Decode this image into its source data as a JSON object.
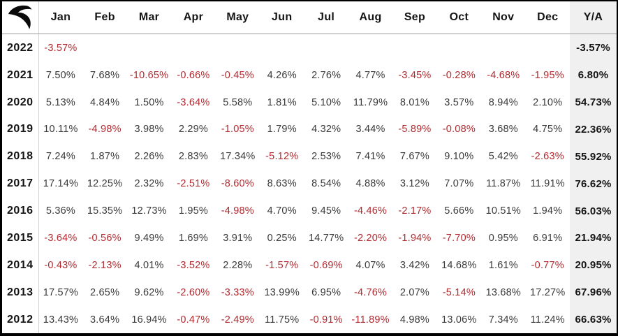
{
  "colors": {
    "negative": "#b12b31",
    "positive": "#3a3a3a",
    "heading": "#141414",
    "ya_bg": "#f0f0f0",
    "grid": "#d0d0d0",
    "header_rule": "#9a9a9a",
    "border": "#000000"
  },
  "logo": {
    "name": "brand-swoosh-logo"
  },
  "table": {
    "months": [
      "Jan",
      "Feb",
      "Mar",
      "Apr",
      "May",
      "Jun",
      "Jul",
      "Aug",
      "Sep",
      "Oct",
      "Nov",
      "Dec"
    ],
    "total_label": "Y/A",
    "rows": [
      {
        "year": "2022",
        "monthly": [
          "-3.57%",
          "",
          "",
          "",
          "",
          "",
          "",
          "",
          "",
          "",
          "",
          ""
        ],
        "total": "-3.57%"
      },
      {
        "year": "2021",
        "monthly": [
          "7.50%",
          "7.68%",
          "-10.65%",
          "-0.66%",
          "-0.45%",
          "4.26%",
          "2.76%",
          "4.77%",
          "-3.45%",
          "-0.28%",
          "-4.68%",
          "-1.95%"
        ],
        "total": "6.80%"
      },
      {
        "year": "2020",
        "monthly": [
          "5.13%",
          "4.84%",
          "1.50%",
          "-3.64%",
          "5.58%",
          "1.81%",
          "5.10%",
          "11.79%",
          "8.01%",
          "3.57%",
          "8.94%",
          "2.10%"
        ],
        "total": "54.73%"
      },
      {
        "year": "2019",
        "monthly": [
          "10.11%",
          "-4.98%",
          "3.98%",
          "2.29%",
          "-1.05%",
          "1.79%",
          "4.32%",
          "3.44%",
          "-5.89%",
          "-0.08%",
          "3.68%",
          "4.75%"
        ],
        "total": "22.36%"
      },
      {
        "year": "2018",
        "monthly": [
          "7.24%",
          "1.87%",
          "2.26%",
          "2.83%",
          "17.34%",
          "-5.12%",
          "2.53%",
          "7.41%",
          "7.67%",
          "9.10%",
          "5.42%",
          "-2.63%"
        ],
        "total": "55.92%"
      },
      {
        "year": "2017",
        "monthly": [
          "17.14%",
          "12.25%",
          "2.32%",
          "-2.51%",
          "-8.60%",
          "8.63%",
          "8.54%",
          "4.88%",
          "3.12%",
          "7.07%",
          "11.87%",
          "11.91%"
        ],
        "total": "76.62%"
      },
      {
        "year": "2016",
        "monthly": [
          "5.36%",
          "15.35%",
          "12.73%",
          "1.95%",
          "-4.98%",
          "4.70%",
          "9.45%",
          "-4.46%",
          "-2.17%",
          "5.66%",
          "10.51%",
          "1.94%"
        ],
        "total": "56.03%"
      },
      {
        "year": "2015",
        "monthly": [
          "-3.64%",
          "-0.56%",
          "9.49%",
          "1.69%",
          "3.91%",
          "0.25%",
          "14.77%",
          "-2.20%",
          "-1.94%",
          "-7.70%",
          "0.95%",
          "6.91%"
        ],
        "total": "21.94%"
      },
      {
        "year": "2014",
        "monthly": [
          "-0.43%",
          "-2.13%",
          "4.01%",
          "-3.52%",
          "2.28%",
          "-1.57%",
          "-0.69%",
          "4.07%",
          "3.42%",
          "14.68%",
          "1.61%",
          "-0.77%"
        ],
        "total": "20.95%"
      },
      {
        "year": "2013",
        "monthly": [
          "17.57%",
          "2.65%",
          "9.62%",
          "-2.60%",
          "-3.33%",
          "13.99%",
          "6.95%",
          "-4.76%",
          "2.07%",
          "-5.14%",
          "13.68%",
          "17.27%"
        ],
        "total": "67.96%"
      },
      {
        "year": "2012",
        "monthly": [
          "13.43%",
          "3.64%",
          "16.94%",
          "-0.47%",
          "-2.49%",
          "11.75%",
          "-0.91%",
          "-11.89%",
          "4.98%",
          "13.06%",
          "7.34%",
          "11.24%"
        ],
        "total": "66.63%"
      }
    ]
  },
  "chart_data": {
    "type": "table",
    "title": "Monthly returns by year with yearly aggregate (Y/A)",
    "columns": [
      "Jan",
      "Feb",
      "Mar",
      "Apr",
      "May",
      "Jun",
      "Jul",
      "Aug",
      "Sep",
      "Oct",
      "Nov",
      "Dec",
      "Y/A"
    ],
    "rows": [
      {
        "year": 2022,
        "values": [
          -3.57,
          null,
          null,
          null,
          null,
          null,
          null,
          null,
          null,
          null,
          null,
          null
        ],
        "yearly": -3.57
      },
      {
        "year": 2021,
        "values": [
          7.5,
          7.68,
          -10.65,
          -0.66,
          -0.45,
          4.26,
          2.76,
          4.77,
          -3.45,
          -0.28,
          -4.68,
          -1.95
        ],
        "yearly": 6.8
      },
      {
        "year": 2020,
        "values": [
          5.13,
          4.84,
          1.5,
          -3.64,
          5.58,
          1.81,
          5.1,
          11.79,
          8.01,
          3.57,
          8.94,
          2.1
        ],
        "yearly": 54.73
      },
      {
        "year": 2019,
        "values": [
          10.11,
          -4.98,
          3.98,
          2.29,
          -1.05,
          1.79,
          4.32,
          3.44,
          -5.89,
          -0.08,
          3.68,
          4.75
        ],
        "yearly": 22.36
      },
      {
        "year": 2018,
        "values": [
          7.24,
          1.87,
          2.26,
          2.83,
          17.34,
          -5.12,
          2.53,
          7.41,
          7.67,
          9.1,
          5.42,
          -2.63
        ],
        "yearly": 55.92
      },
      {
        "year": 2017,
        "values": [
          17.14,
          12.25,
          2.32,
          -2.51,
          -8.6,
          8.63,
          8.54,
          4.88,
          3.12,
          7.07,
          11.87,
          11.91
        ],
        "yearly": 76.62
      },
      {
        "year": 2016,
        "values": [
          5.36,
          15.35,
          12.73,
          1.95,
          -4.98,
          4.7,
          9.45,
          -4.46,
          -2.17,
          5.66,
          10.51,
          1.94
        ],
        "yearly": 56.03
      },
      {
        "year": 2015,
        "values": [
          -3.64,
          -0.56,
          9.49,
          1.69,
          3.91,
          0.25,
          14.77,
          -2.2,
          -1.94,
          -7.7,
          0.95,
          6.91
        ],
        "yearly": 21.94
      },
      {
        "year": 2014,
        "values": [
          -0.43,
          -2.13,
          4.01,
          -3.52,
          2.28,
          -1.57,
          -0.69,
          4.07,
          3.42,
          14.68,
          1.61,
          -0.77
        ],
        "yearly": 20.95
      },
      {
        "year": 2013,
        "values": [
          17.57,
          2.65,
          9.62,
          -2.6,
          -3.33,
          13.99,
          6.95,
          -4.76,
          2.07,
          -5.14,
          13.68,
          17.27
        ],
        "yearly": 67.96
      },
      {
        "year": 2012,
        "values": [
          13.43,
          3.64,
          16.94,
          -0.47,
          -2.49,
          11.75,
          -0.91,
          -11.89,
          4.98,
          13.06,
          7.34,
          11.24
        ],
        "yearly": 66.63
      }
    ],
    "units": "percent"
  }
}
